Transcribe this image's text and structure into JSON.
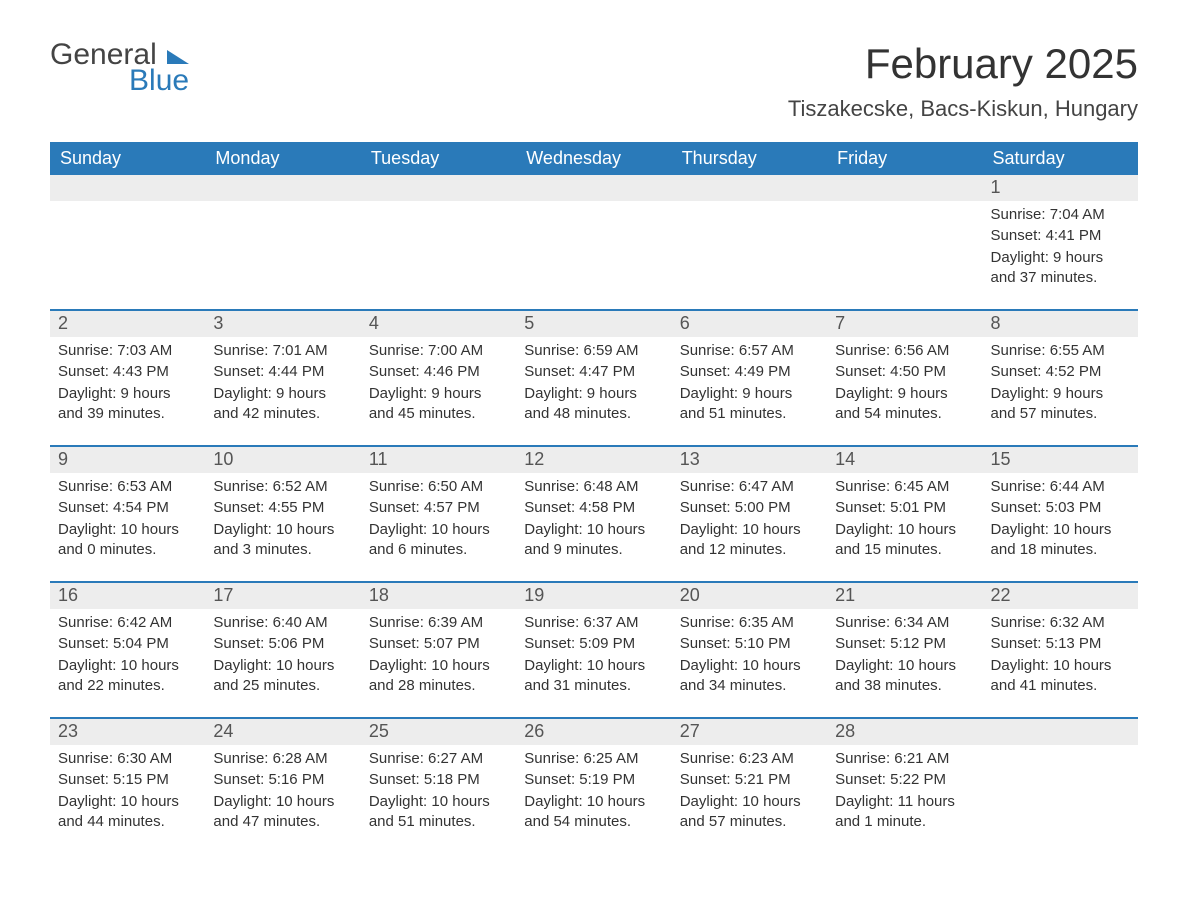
{
  "brand": {
    "word1": "General",
    "word2": "Blue"
  },
  "title": "February 2025",
  "location": "Tiszakecske, Bacs-Kiskun, Hungary",
  "colors": {
    "accent": "#2a7ab9",
    "header_row_bg": "#ededed",
    "text": "#333333",
    "background": "#ffffff"
  },
  "typography": {
    "title_size_pt": 32,
    "location_size_pt": 16,
    "dayheader_size_pt": 14,
    "body_size_pt": 11
  },
  "day_names": [
    "Sunday",
    "Monday",
    "Tuesday",
    "Wednesday",
    "Thursday",
    "Friday",
    "Saturday"
  ],
  "weeks": [
    [
      {
        "n": "",
        "sr": "",
        "ss": "",
        "dl": ""
      },
      {
        "n": "",
        "sr": "",
        "ss": "",
        "dl": ""
      },
      {
        "n": "",
        "sr": "",
        "ss": "",
        "dl": ""
      },
      {
        "n": "",
        "sr": "",
        "ss": "",
        "dl": ""
      },
      {
        "n": "",
        "sr": "",
        "ss": "",
        "dl": ""
      },
      {
        "n": "",
        "sr": "",
        "ss": "",
        "dl": ""
      },
      {
        "n": "1",
        "sr": "Sunrise: 7:04 AM",
        "ss": "Sunset: 4:41 PM",
        "dl": "Daylight: 9 hours and 37 minutes."
      }
    ],
    [
      {
        "n": "2",
        "sr": "Sunrise: 7:03 AM",
        "ss": "Sunset: 4:43 PM",
        "dl": "Daylight: 9 hours and 39 minutes."
      },
      {
        "n": "3",
        "sr": "Sunrise: 7:01 AM",
        "ss": "Sunset: 4:44 PM",
        "dl": "Daylight: 9 hours and 42 minutes."
      },
      {
        "n": "4",
        "sr": "Sunrise: 7:00 AM",
        "ss": "Sunset: 4:46 PM",
        "dl": "Daylight: 9 hours and 45 minutes."
      },
      {
        "n": "5",
        "sr": "Sunrise: 6:59 AM",
        "ss": "Sunset: 4:47 PM",
        "dl": "Daylight: 9 hours and 48 minutes."
      },
      {
        "n": "6",
        "sr": "Sunrise: 6:57 AM",
        "ss": "Sunset: 4:49 PM",
        "dl": "Daylight: 9 hours and 51 minutes."
      },
      {
        "n": "7",
        "sr": "Sunrise: 6:56 AM",
        "ss": "Sunset: 4:50 PM",
        "dl": "Daylight: 9 hours and 54 minutes."
      },
      {
        "n": "8",
        "sr": "Sunrise: 6:55 AM",
        "ss": "Sunset: 4:52 PM",
        "dl": "Daylight: 9 hours and 57 minutes."
      }
    ],
    [
      {
        "n": "9",
        "sr": "Sunrise: 6:53 AM",
        "ss": "Sunset: 4:54 PM",
        "dl": "Daylight: 10 hours and 0 minutes."
      },
      {
        "n": "10",
        "sr": "Sunrise: 6:52 AM",
        "ss": "Sunset: 4:55 PM",
        "dl": "Daylight: 10 hours and 3 minutes."
      },
      {
        "n": "11",
        "sr": "Sunrise: 6:50 AM",
        "ss": "Sunset: 4:57 PM",
        "dl": "Daylight: 10 hours and 6 minutes."
      },
      {
        "n": "12",
        "sr": "Sunrise: 6:48 AM",
        "ss": "Sunset: 4:58 PM",
        "dl": "Daylight: 10 hours and 9 minutes."
      },
      {
        "n": "13",
        "sr": "Sunrise: 6:47 AM",
        "ss": "Sunset: 5:00 PM",
        "dl": "Daylight: 10 hours and 12 minutes."
      },
      {
        "n": "14",
        "sr": "Sunrise: 6:45 AM",
        "ss": "Sunset: 5:01 PM",
        "dl": "Daylight: 10 hours and 15 minutes."
      },
      {
        "n": "15",
        "sr": "Sunrise: 6:44 AM",
        "ss": "Sunset: 5:03 PM",
        "dl": "Daylight: 10 hours and 18 minutes."
      }
    ],
    [
      {
        "n": "16",
        "sr": "Sunrise: 6:42 AM",
        "ss": "Sunset: 5:04 PM",
        "dl": "Daylight: 10 hours and 22 minutes."
      },
      {
        "n": "17",
        "sr": "Sunrise: 6:40 AM",
        "ss": "Sunset: 5:06 PM",
        "dl": "Daylight: 10 hours and 25 minutes."
      },
      {
        "n": "18",
        "sr": "Sunrise: 6:39 AM",
        "ss": "Sunset: 5:07 PM",
        "dl": "Daylight: 10 hours and 28 minutes."
      },
      {
        "n": "19",
        "sr": "Sunrise: 6:37 AM",
        "ss": "Sunset: 5:09 PM",
        "dl": "Daylight: 10 hours and 31 minutes."
      },
      {
        "n": "20",
        "sr": "Sunrise: 6:35 AM",
        "ss": "Sunset: 5:10 PM",
        "dl": "Daylight: 10 hours and 34 minutes."
      },
      {
        "n": "21",
        "sr": "Sunrise: 6:34 AM",
        "ss": "Sunset: 5:12 PM",
        "dl": "Daylight: 10 hours and 38 minutes."
      },
      {
        "n": "22",
        "sr": "Sunrise: 6:32 AM",
        "ss": "Sunset: 5:13 PM",
        "dl": "Daylight: 10 hours and 41 minutes."
      }
    ],
    [
      {
        "n": "23",
        "sr": "Sunrise: 6:30 AM",
        "ss": "Sunset: 5:15 PM",
        "dl": "Daylight: 10 hours and 44 minutes."
      },
      {
        "n": "24",
        "sr": "Sunrise: 6:28 AM",
        "ss": "Sunset: 5:16 PM",
        "dl": "Daylight: 10 hours and 47 minutes."
      },
      {
        "n": "25",
        "sr": "Sunrise: 6:27 AM",
        "ss": "Sunset: 5:18 PM",
        "dl": "Daylight: 10 hours and 51 minutes."
      },
      {
        "n": "26",
        "sr": "Sunrise: 6:25 AM",
        "ss": "Sunset: 5:19 PM",
        "dl": "Daylight: 10 hours and 54 minutes."
      },
      {
        "n": "27",
        "sr": "Sunrise: 6:23 AM",
        "ss": "Sunset: 5:21 PM",
        "dl": "Daylight: 10 hours and 57 minutes."
      },
      {
        "n": "28",
        "sr": "Sunrise: 6:21 AM",
        "ss": "Sunset: 5:22 PM",
        "dl": "Daylight: 11 hours and 1 minute."
      },
      {
        "n": "",
        "sr": "",
        "ss": "",
        "dl": ""
      }
    ]
  ]
}
